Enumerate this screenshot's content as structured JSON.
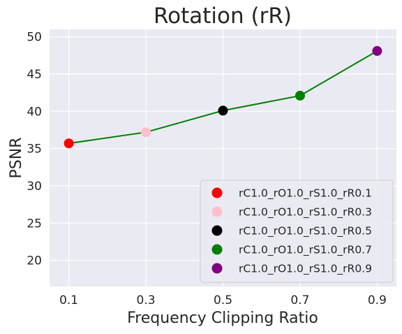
{
  "chart_data": {
    "type": "scatter",
    "title": "Rotation (rR)",
    "xlabel": "Frequency Clipping Ratio",
    "ylabel": "PSNR",
    "xlim": [
      0.05,
      0.95
    ],
    "ylim": [
      16.5,
      51
    ],
    "xticks": [
      "0.1",
      "0.3",
      "0.5",
      "0.7",
      "0.9"
    ],
    "yticks": [
      "20",
      "25",
      "30",
      "35",
      "40",
      "45",
      "50"
    ],
    "grid": true,
    "legend_position": "lower right",
    "line": {
      "color": "#008000",
      "x": [
        0.1,
        0.3,
        0.5,
        0.7,
        0.9
      ],
      "y": [
        35.7,
        37.2,
        40.1,
        42.1,
        48.1
      ]
    },
    "series": [
      {
        "name": "rC1.0_rO1.0_rS1.0_rR0.1",
        "x": 0.1,
        "y": 35.7,
        "color": "#ff0000"
      },
      {
        "name": "rC1.0_rO1.0_rS1.0_rR0.3",
        "x": 0.3,
        "y": 37.2,
        "color": "#ffc0cb"
      },
      {
        "name": "rC1.0_rO1.0_rS1.0_rR0.5",
        "x": 0.5,
        "y": 40.1,
        "color": "#000000"
      },
      {
        "name": "rC1.0_rO1.0_rS1.0_rR0.7",
        "x": 0.7,
        "y": 42.1,
        "color": "#008000"
      },
      {
        "name": "rC1.0_rO1.0_rS1.0_rR0.9",
        "x": 0.9,
        "y": 48.1,
        "color": "#800080"
      }
    ]
  }
}
